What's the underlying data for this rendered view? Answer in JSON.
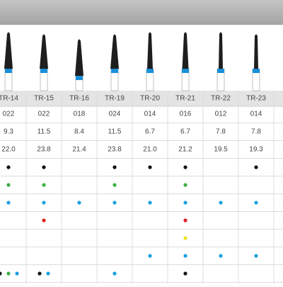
{
  "table": {
    "header": [
      "TR-14",
      "TR-15",
      "TR-16",
      "TR-19",
      "TR-20",
      "TR-21",
      "TR-22",
      "TR-23"
    ],
    "rows": [
      [
        "022",
        "022",
        "018",
        "024",
        "014",
        "016",
        "012",
        "014"
      ],
      [
        "9.3",
        "11.5",
        "8.4",
        "11.5",
        "6.7",
        "6.7",
        "7.8",
        "7.8"
      ],
      [
        "22.0",
        "23.8",
        "21.4",
        "23.8",
        "21.0",
        "21.2",
        "19.5",
        "19.3"
      ]
    ],
    "indicator_rows": [
      [
        [
          "#111111"
        ],
        [
          "#111111"
        ],
        [],
        [
          "#111111"
        ],
        [
          "#111111"
        ],
        [
          "#111111"
        ],
        [],
        [
          "#111111"
        ]
      ],
      [
        [
          "#3cb043"
        ],
        [
          "#3cb043"
        ],
        [],
        [
          "#3cb043"
        ],
        [],
        [
          "#3cb043"
        ],
        [],
        []
      ],
      [
        [
          "#1aa0e0"
        ],
        [
          "#1aa0e0"
        ],
        [
          "#1aa0e0"
        ],
        [
          "#1aa0e0"
        ],
        [
          "#1aa0e0"
        ],
        [
          "#1aa0e0"
        ],
        [
          "#1aa0e0"
        ],
        [
          "#1aa0e0"
        ]
      ],
      [
        [],
        [
          "#e02020"
        ],
        [],
        [],
        [],
        [
          "#e02020"
        ],
        [],
        []
      ],
      [
        [],
        [],
        [],
        [],
        [],
        [
          "#f0e020"
        ],
        [],
        []
      ],
      [
        [],
        [],
        [],
        [],
        [
          "#1aa0e0"
        ],
        [
          "#1aa0e0"
        ],
        [
          "#1aa0e0"
        ],
        [
          "#1aa0e0"
        ]
      ],
      [
        [
          "#111111",
          "#3cb043",
          "#1aa0e0"
        ],
        [
          "#111111",
          "#1aa0e0"
        ],
        [],
        [
          "#1aa0e0"
        ],
        [],
        [
          "#111111"
        ],
        [],
        []
      ]
    ]
  }
}
